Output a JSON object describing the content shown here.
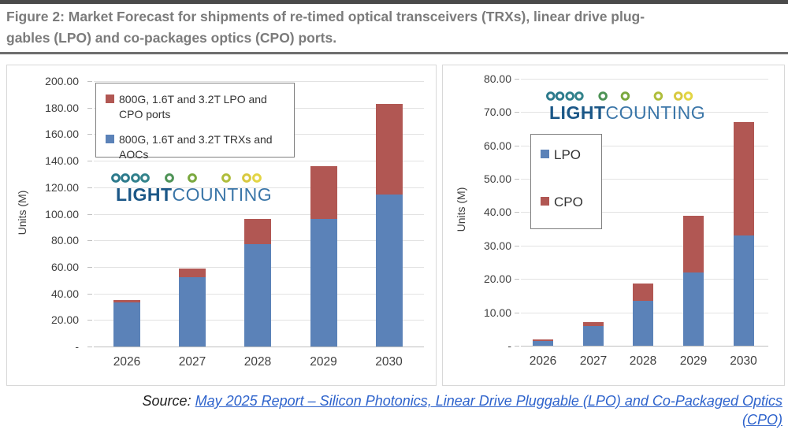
{
  "title": {
    "line1": "Figure 2: Market Forecast for shipments of re-timed optical transceivers (TRXs), linear drive plug-",
    "line2": "gables (LPO) and co-packages optics (CPO) ports."
  },
  "logo": {
    "light": "LIGHT",
    "counting": "COUNTING"
  },
  "source": {
    "prefix": "Source:",
    "link_line1": "May 2025 Report – Silicon Photonics, Linear Drive Pluggable (LPO) and Co-Packaged Optics",
    "link_line2": "(CPO)"
  },
  "colors": {
    "bar_blue": "#5B82B8",
    "bar_red": "#B15753",
    "gridline": "#E2E2E2",
    "axis": "#BFBFBF",
    "title_gray": "#7B7B7B",
    "link_blue": "#2E63CC",
    "logo_light_blue": "#1B5787",
    "logo_counting_blue": "#3B76A8"
  },
  "chart_data": [
    {
      "type": "bar",
      "stacked": true,
      "categories": [
        "2026",
        "2027",
        "2028",
        "2029",
        "2030"
      ],
      "series": [
        {
          "name": "800G, 1.6T and 3.2T TRXs and AOCs",
          "slug": "trxs-aocs",
          "color": "#5B82B8",
          "values": [
            33,
            52,
            77,
            96,
            114.5
          ]
        },
        {
          "name": "800G, 1.6T and 3.2T LPO and CPO ports",
          "slug": "lpo-cpo-ports",
          "color": "#B15753",
          "values": [
            2,
            7,
            19,
            40,
            68
          ]
        }
      ],
      "ylabel": "Units (M)",
      "ylim": [
        0,
        200
      ],
      "ytick_step": 20,
      "zero_tick_label": "-",
      "grid": true,
      "legend_position": "top-left"
    },
    {
      "type": "bar",
      "stacked": true,
      "categories": [
        "2026",
        "2027",
        "2028",
        "2029",
        "2030"
      ],
      "series": [
        {
          "name": "LPO",
          "slug": "lpo",
          "color": "#5B82B8",
          "values": [
            1.5,
            6,
            13.5,
            22,
            33
          ]
        },
        {
          "name": "CPO",
          "slug": "cpo",
          "color": "#B15753",
          "values": [
            0.3,
            1,
            5.2,
            17,
            34
          ]
        }
      ],
      "ylabel": "Units (M)",
      "ylim": [
        0,
        80
      ],
      "ytick_step": 10,
      "zero_tick_label": "-",
      "grid": true,
      "legend_position": "upper-left"
    }
  ]
}
